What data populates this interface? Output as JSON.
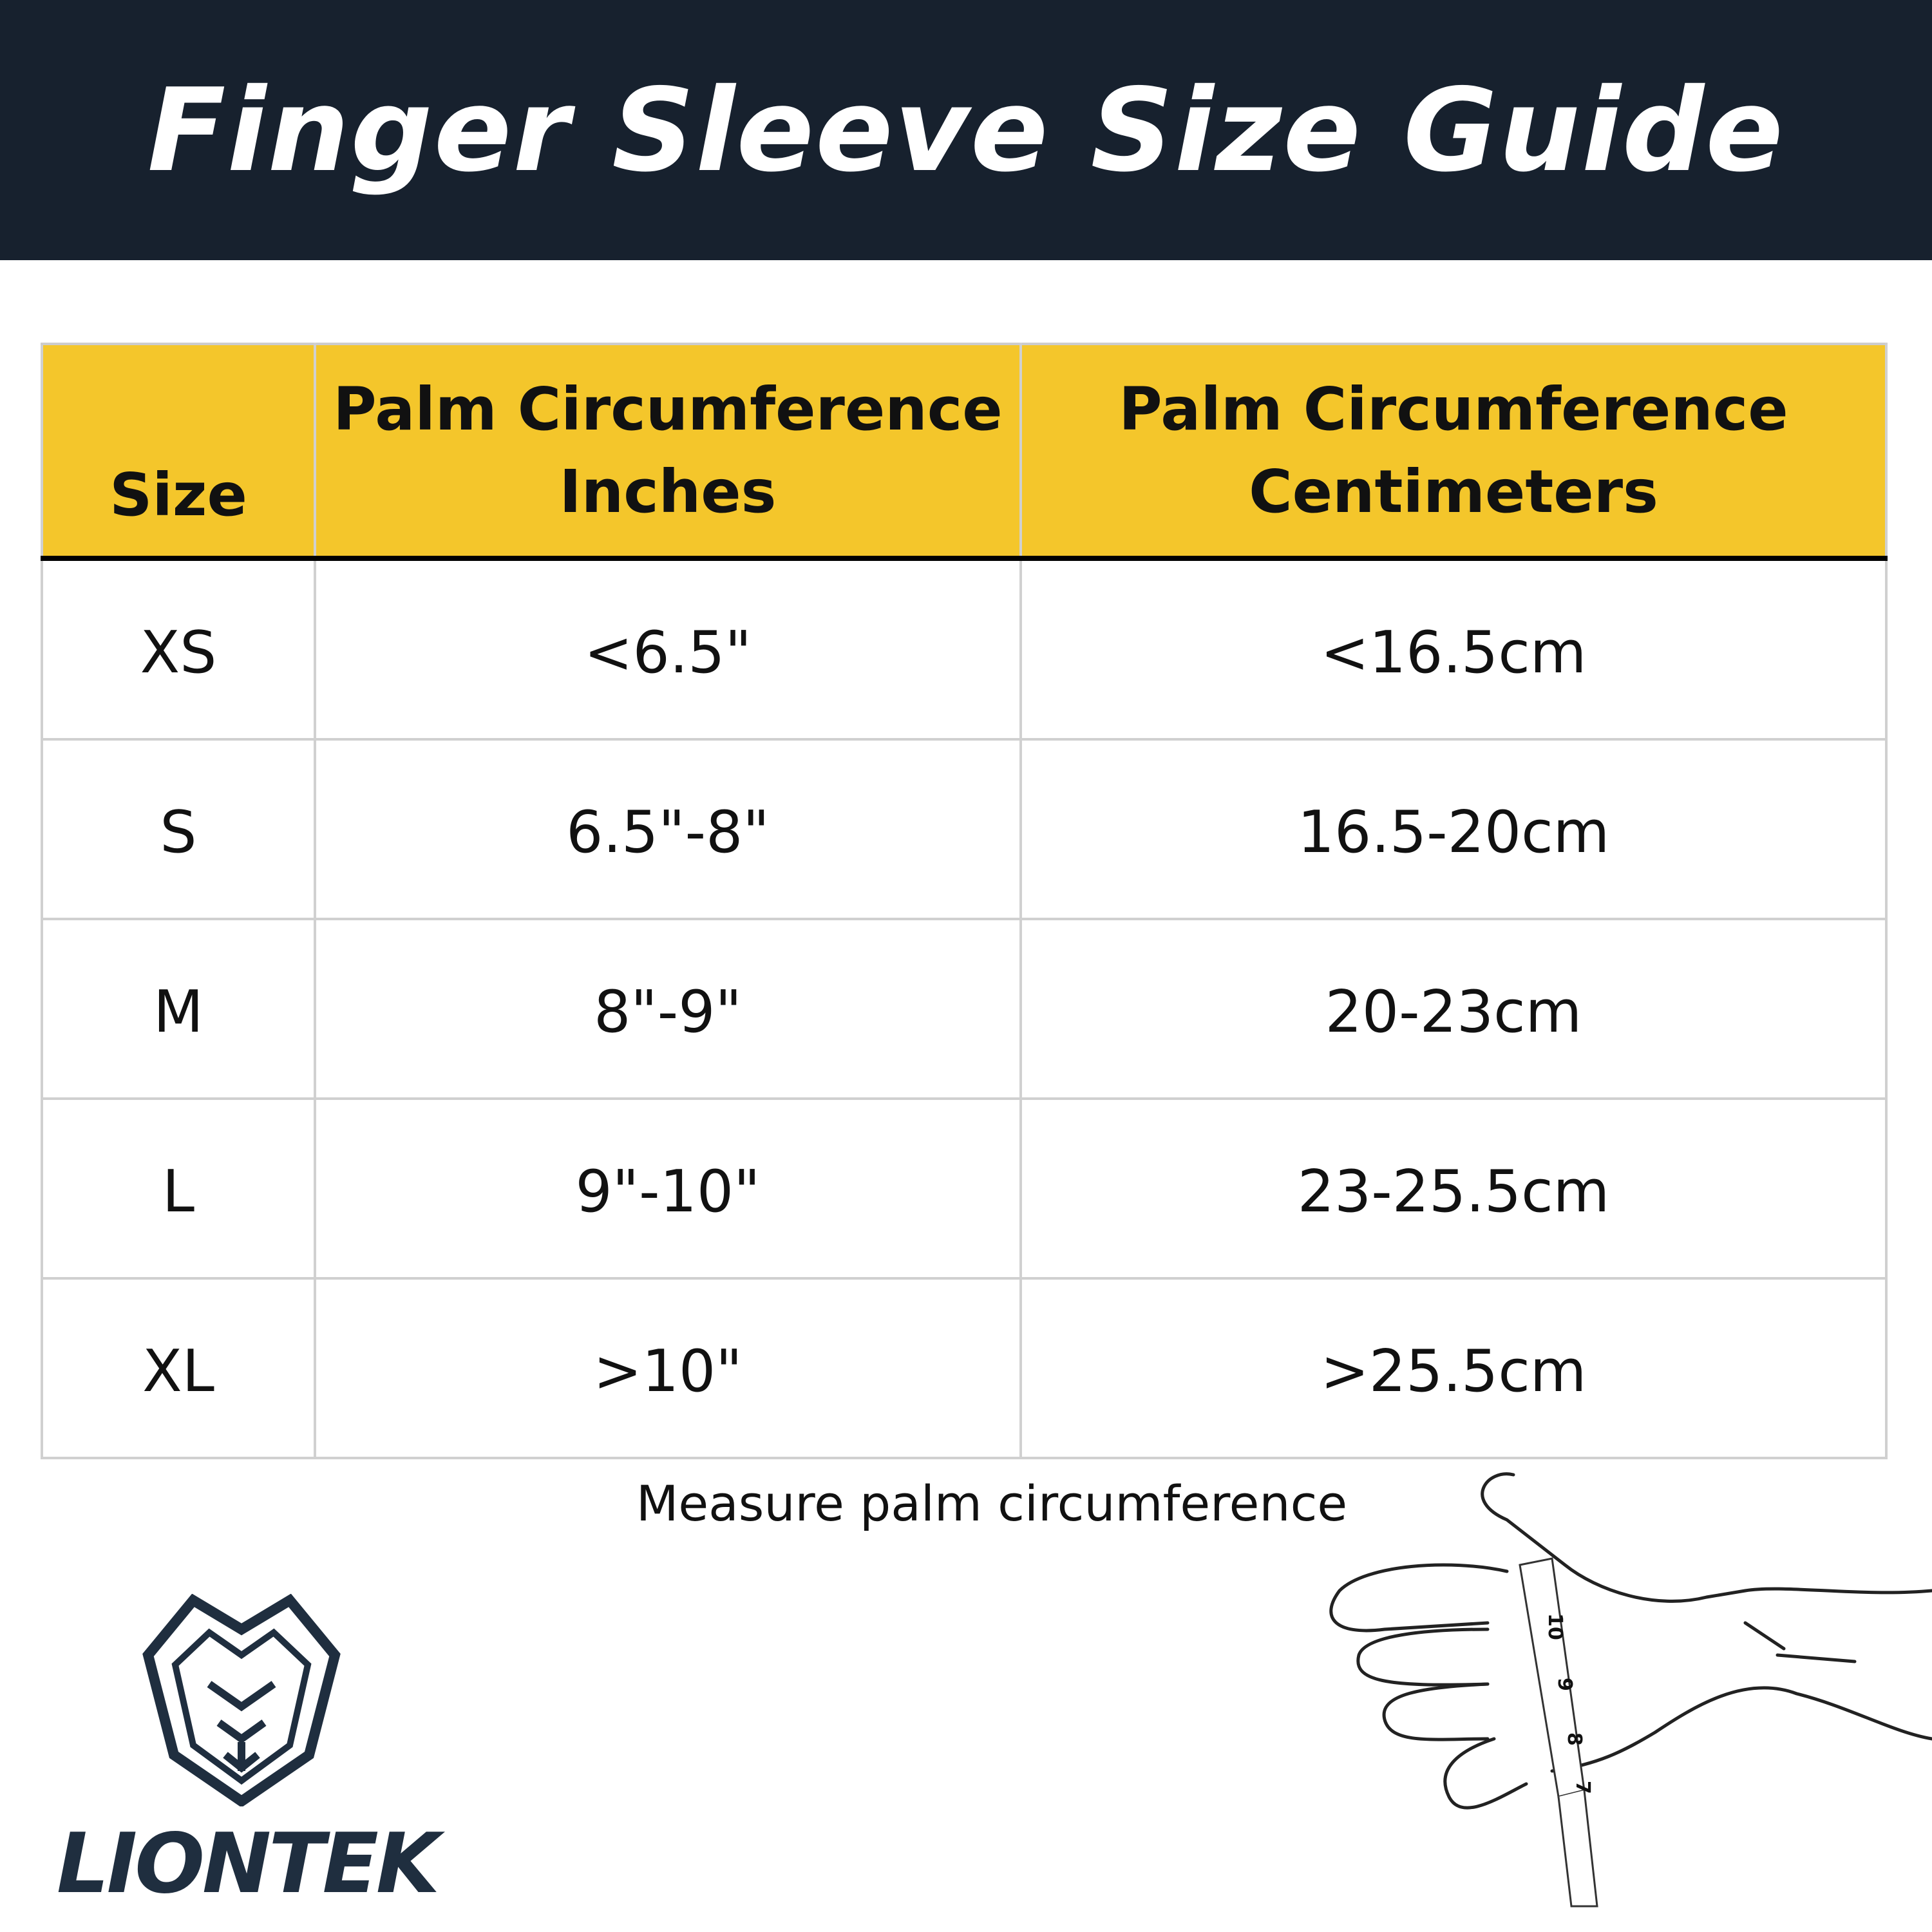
{
  "header": {
    "title": "Finger Sleeve Size Guide"
  },
  "table": {
    "columns": [
      {
        "line1": "",
        "line2": "Size"
      },
      {
        "line1": "Palm Circumference",
        "line2": "Inches"
      },
      {
        "line1": "Palm Circumference",
        "line2": "Centimeters"
      }
    ],
    "rows": [
      {
        "size": "XS",
        "inches": "<6.5\"",
        "cm": "<16.5cm"
      },
      {
        "size": "S",
        "inches": "6.5\"-8\"",
        "cm": "16.5-20cm"
      },
      {
        "size": "M",
        "inches": "8\"-9\"",
        "cm": "20-23cm"
      },
      {
        "size": "L",
        "inches": "9\"-10\"",
        "cm": "23-25.5cm"
      },
      {
        "size": "XL",
        "inches": ">10\"",
        "cm": ">25.5cm"
      }
    ]
  },
  "caption": "Measure palm circumference",
  "brand": {
    "name": "LIONTEK",
    "color": "#1f2e3f"
  },
  "tape_marks": [
    "10",
    "9",
    "8",
    "7"
  ],
  "colors": {
    "header_bg": "#17212e",
    "header_row": "#f4c62b"
  }
}
